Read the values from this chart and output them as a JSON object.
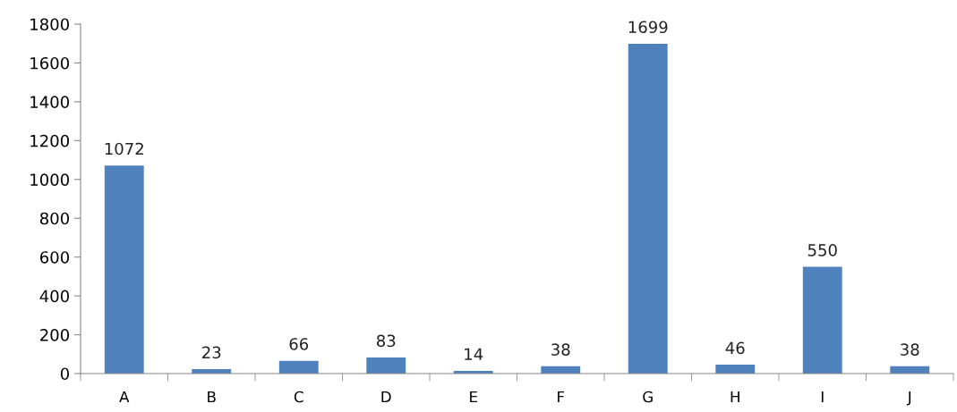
{
  "chart_data": {
    "type": "bar",
    "categories": [
      "A",
      "B",
      "C",
      "D",
      "E",
      "F",
      "G",
      "H",
      "I",
      "J"
    ],
    "values": [
      1072,
      23,
      66,
      83,
      14,
      38,
      1699,
      46,
      550,
      38
    ],
    "color": "#4f81bd",
    "ylim": [
      0,
      1800
    ],
    "yticks": [
      0,
      200,
      400,
      600,
      800,
      1000,
      1200,
      1400,
      1600,
      1800
    ],
    "data_labels": true
  }
}
